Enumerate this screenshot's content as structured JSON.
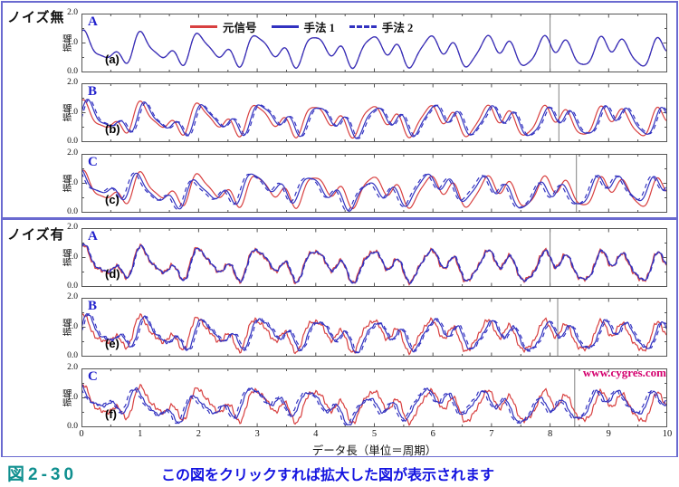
{
  "figure": {
    "sections": [
      {
        "label": "ノイズ無"
      },
      {
        "label": "ノイズ有"
      }
    ],
    "watermark": "www.cygres.com",
    "caption": {
      "number": "図2-30",
      "text": "この図をクリックすれば拡大した図が表示されます"
    }
  },
  "colors": {
    "original": "#d84040",
    "method": "#3232c0",
    "marker": "#808080",
    "frame": "#555555",
    "border": "#6a6ad0",
    "watermark": "#d4006e",
    "caption_number": "#0f8f8f",
    "caption_text": "#1414e0",
    "panel_letter": "#2222cc"
  },
  "chart_data": {
    "type": "line",
    "title": "",
    "xlabel": "データ長（単位＝周期）",
    "ylabel": "振幅",
    "xlim": [
      0,
      10
    ],
    "ylim": [
      0.0,
      2.0
    ],
    "x_ticks": [
      0,
      1,
      2,
      3,
      4,
      5,
      6,
      7,
      8,
      9,
      10
    ],
    "x_minor_step": 0.5,
    "y_tick_labels": [
      "2.0",
      "1.0",
      "0.0"
    ],
    "y_tick_values": [
      2.0,
      1.0,
      0.0
    ],
    "y_minor_step": 0.5,
    "grid": false,
    "legend_position": "top-inside-first-panel",
    "legend": [
      {
        "label": "元信号",
        "color": "#d84040",
        "style": "solid"
      },
      {
        "label": "手法 1",
        "color": "#3232c0",
        "style": "solid"
      },
      {
        "label": "手法 2",
        "color": "#3232c0",
        "style": "dashed"
      }
    ],
    "base_signal": {
      "offset": 0.75,
      "components": [
        {
          "freq": 1.0,
          "amp": 0.33,
          "phase": 1.2
        },
        {
          "freq": 2.05,
          "amp": 0.27,
          "phase": 0.9
        },
        {
          "freq": 3.15,
          "amp": 0.12,
          "phase": 1.4
        }
      ]
    },
    "noise": {
      "components": [
        {
          "freq": 9.7,
          "amp": 0.045,
          "phase": 2.0
        },
        {
          "freq": 17.3,
          "amp": 0.035,
          "phase": 5.0
        }
      ]
    },
    "panels": [
      {
        "id": "a",
        "section": 0,
        "letter": "A",
        "sublabel": "(a)",
        "marker_x": 8.0,
        "noisy": false,
        "methods": [
          {
            "style": "solid",
            "shift": 0.0,
            "gain": 1.0,
            "wobble": 0.0
          },
          {
            "style": "dashed",
            "shift": 0.0,
            "gain": 1.0,
            "wobble": 0.0
          }
        ]
      },
      {
        "id": "b",
        "section": 0,
        "letter": "B",
        "sublabel": "(b)",
        "marker_x": 8.15,
        "noisy": false,
        "methods": [
          {
            "style": "solid",
            "shift": -0.07,
            "gain": 0.96,
            "wobble": 0.04
          },
          {
            "style": "dashed",
            "shift": -0.1,
            "gain": 0.94,
            "wobble": 0.05
          }
        ]
      },
      {
        "id": "c",
        "section": 0,
        "letter": "C",
        "sublabel": "(c)",
        "marker_x": 8.45,
        "noisy": false,
        "methods": [
          {
            "style": "solid",
            "shift": 0.06,
            "gain": 0.9,
            "wobble": 0.16
          },
          {
            "style": "dashed",
            "shift": 0.1,
            "gain": 0.88,
            "wobble": 0.18
          }
        ]
      },
      {
        "id": "d",
        "section": 1,
        "letter": "A",
        "sublabel": "(d)",
        "marker_x": 8.0,
        "noisy": true,
        "methods": [
          {
            "style": "solid",
            "shift": -0.01,
            "gain": 1.0,
            "wobble": 0.02
          },
          {
            "style": "dashed",
            "shift": -0.02,
            "gain": 0.99,
            "wobble": 0.02
          }
        ]
      },
      {
        "id": "e",
        "section": 1,
        "letter": "B",
        "sublabel": "(e)",
        "marker_x": 8.13,
        "noisy": true,
        "methods": [
          {
            "style": "solid",
            "shift": -0.07,
            "gain": 0.95,
            "wobble": 0.05
          },
          {
            "style": "dashed",
            "shift": -0.1,
            "gain": 0.93,
            "wobble": 0.06
          }
        ]
      },
      {
        "id": "f",
        "section": 1,
        "letter": "C",
        "sublabel": "(f)",
        "marker_x": 8.42,
        "noisy": true,
        "methods": [
          {
            "style": "solid",
            "shift": 0.07,
            "gain": 0.85,
            "wobble": 0.18
          },
          {
            "style": "dashed",
            "shift": 0.11,
            "gain": 0.82,
            "wobble": 0.2
          }
        ]
      }
    ]
  }
}
